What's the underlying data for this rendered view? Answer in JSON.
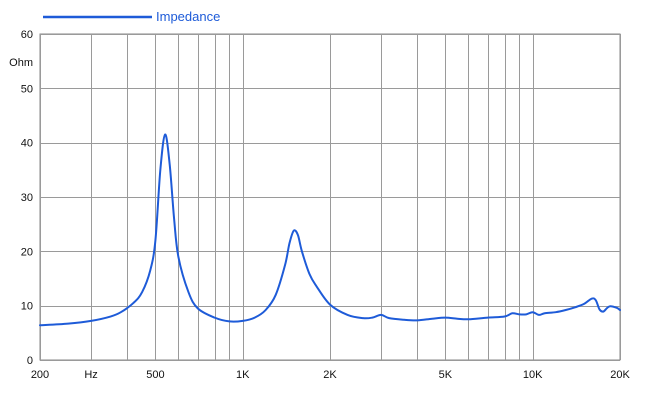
{
  "chart_data": {
    "type": "line",
    "xscale": "log",
    "xlim": [
      200,
      20000
    ],
    "ylim": [
      0,
      60
    ],
    "ylabel": "Ohm",
    "yticks": [
      0,
      10,
      20,
      30,
      40,
      50,
      60
    ],
    "yticklabels": [
      "0",
      "10",
      "20",
      "30",
      "40",
      "50",
      "60"
    ],
    "xgrid": [
      200,
      300,
      400,
      500,
      600,
      700,
      800,
      900,
      1000,
      2000,
      3000,
      4000,
      5000,
      6000,
      7000,
      8000,
      9000,
      10000,
      20000
    ],
    "xticks": [
      {
        "x": 200,
        "label": "200"
      },
      {
        "x": 300,
        "label": "Hz"
      },
      {
        "x": 500,
        "label": "500"
      },
      {
        "x": 1000,
        "label": "1K"
      },
      {
        "x": 2000,
        "label": "2K"
      },
      {
        "x": 5000,
        "label": "5K"
      },
      {
        "x": 10000,
        "label": "10K"
      },
      {
        "x": 20000,
        "label": "20K"
      }
    ],
    "grid": true,
    "legend_position": "top-left",
    "series": [
      {
        "name": "Impedance",
        "color": "#1e5bd8",
        "points": [
          [
            200,
            6.4
          ],
          [
            250,
            6.7
          ],
          [
            300,
            7.2
          ],
          [
            350,
            8.0
          ],
          [
            380,
            8.8
          ],
          [
            420,
            10.5
          ],
          [
            450,
            12.5
          ],
          [
            480,
            16.5
          ],
          [
            500,
            22.0
          ],
          [
            520,
            35.0
          ],
          [
            540,
            41.5
          ],
          [
            560,
            36.0
          ],
          [
            580,
            26.0
          ],
          [
            600,
            19.0
          ],
          [
            650,
            12.5
          ],
          [
            700,
            9.5
          ],
          [
            800,
            7.8
          ],
          [
            900,
            7.1
          ],
          [
            1000,
            7.2
          ],
          [
            1100,
            7.8
          ],
          [
            1200,
            9.2
          ],
          [
            1300,
            12.0
          ],
          [
            1400,
            17.5
          ],
          [
            1450,
            21.5
          ],
          [
            1500,
            23.8
          ],
          [
            1550,
            23.0
          ],
          [
            1600,
            20.0
          ],
          [
            1700,
            15.8
          ],
          [
            1800,
            13.5
          ],
          [
            2000,
            10.2
          ],
          [
            2300,
            8.3
          ],
          [
            2600,
            7.7
          ],
          [
            2800,
            7.8
          ],
          [
            3000,
            8.3
          ],
          [
            3200,
            7.7
          ],
          [
            3600,
            7.4
          ],
          [
            4000,
            7.3
          ],
          [
            4500,
            7.6
          ],
          [
            5000,
            7.8
          ],
          [
            5500,
            7.6
          ],
          [
            6000,
            7.5
          ],
          [
            7000,
            7.8
          ],
          [
            8000,
            8.0
          ],
          [
            8500,
            8.6
          ],
          [
            9000,
            8.4
          ],
          [
            9500,
            8.4
          ],
          [
            10000,
            8.8
          ],
          [
            10500,
            8.3
          ],
          [
            11000,
            8.6
          ],
          [
            12000,
            8.8
          ],
          [
            13000,
            9.2
          ],
          [
            14000,
            9.7
          ],
          [
            15000,
            10.3
          ],
          [
            16000,
            11.3
          ],
          [
            16500,
            11.0
          ],
          [
            17000,
            9.3
          ],
          [
            17500,
            8.9
          ],
          [
            18000,
            9.5
          ],
          [
            18500,
            9.9
          ],
          [
            19500,
            9.6
          ],
          [
            20000,
            9.2
          ]
        ]
      }
    ]
  }
}
